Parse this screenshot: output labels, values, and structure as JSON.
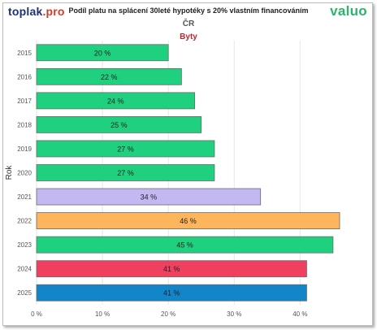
{
  "brand": {
    "left_part1": "toplak",
    "left_part2": ".pro",
    "right": "valuo"
  },
  "title": "Podíl platu na splácení 30leté hypotéky s 20% vlastním financováním",
  "subtitle": "ČR",
  "category": "Byty",
  "chart_data": {
    "type": "bar",
    "orientation": "horizontal",
    "ylabel": "Rok",
    "xlabel": "",
    "xlim": [
      0,
      46
    ],
    "xticks": [
      0,
      10,
      20,
      30,
      40
    ],
    "xtick_labels": [
      "0 %",
      "10 %",
      "20 %",
      "30 %",
      "40 %"
    ],
    "grid": true,
    "categories": [
      "2015",
      "2016",
      "2017",
      "2018",
      "2019",
      "2020",
      "2021",
      "2022",
      "2023",
      "2024",
      "2025"
    ],
    "values": [
      20,
      22,
      24,
      25,
      27,
      27,
      34,
      46,
      45,
      41,
      41
    ],
    "value_labels": [
      "20 %",
      "22 %",
      "24 %",
      "25 %",
      "27 %",
      "27 %",
      "34 %",
      "46 %",
      "45 %",
      "41 %",
      "41 %"
    ],
    "colors": [
      "#1fd17f",
      "#1fd17f",
      "#1fd17f",
      "#1fd17f",
      "#1fd17f",
      "#1fd17f",
      "#c4b8f2",
      "#ffb55c",
      "#1fd17f",
      "#f03f5f",
      "#1386c9"
    ]
  }
}
